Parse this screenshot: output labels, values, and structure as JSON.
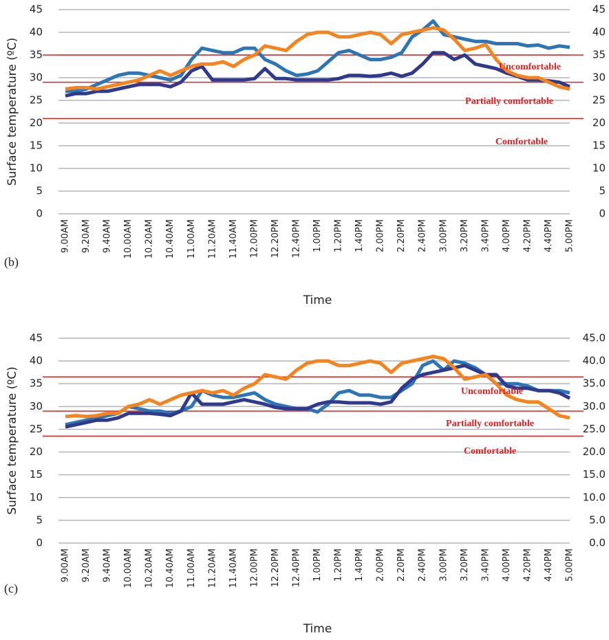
{
  "chart_data": [
    {
      "type": "line",
      "panel_label": "(b)",
      "xlabel": "Time",
      "ylabel": "Surface temperature (ºC)",
      "categories": [
        "9.00AM",
        null,
        "9.20AM",
        null,
        "9.40AM",
        null,
        "10.00AM",
        null,
        "10.20AM",
        null,
        "10.40AM",
        null,
        "11.00AM",
        null,
        "11.20AM",
        null,
        "11.40AM",
        null,
        "12.00PM",
        null,
        "12.20PM",
        null,
        "12.40PM",
        null,
        "1.00PM",
        null,
        "1.20PM",
        null,
        "1.40PM",
        null,
        "2.00PM",
        null,
        "2.20PM",
        null,
        "2.40PM",
        null,
        "3.00PM",
        null,
        "3.20PM",
        null,
        "3.40PM",
        null,
        "4.00PM",
        null,
        "4.20PM",
        null,
        "4.40PM",
        null,
        "5.00PM"
      ],
      "series": [
        {
          "color": "#2e75b6",
          "values": [
            27,
            27,
            27.5,
            28.5,
            29.5,
            30.5,
            31,
            31,
            30.5,
            30,
            29.5,
            30.5,
            34,
            36.5,
            36,
            35.5,
            35.5,
            36.5,
            36.5,
            34,
            33,
            31.5,
            30.5,
            30.8,
            31.5,
            33.5,
            35.5,
            36,
            35,
            34,
            34,
            34.5,
            35.5,
            39,
            40.5,
            42.5,
            39.5,
            39,
            38.5,
            38,
            38,
            37.5,
            37.5,
            37.5,
            37,
            37.2,
            36.5,
            37,
            36.7
          ]
        },
        {
          "color": "#2f3a8c",
          "values": [
            26,
            26.5,
            26.5,
            27,
            27,
            27.5,
            28,
            28.5,
            28.5,
            28.5,
            28,
            29,
            31.5,
            32.5,
            29.5,
            29.5,
            29.5,
            29.5,
            29.8,
            32,
            29.8,
            29.8,
            29.5,
            29.5,
            29.5,
            29.5,
            29.8,
            30.5,
            30.5,
            30.3,
            30.5,
            31,
            30.3,
            31,
            33,
            35.5,
            35.5,
            34,
            35,
            33,
            32.5,
            32,
            31,
            30.3,
            29.5,
            29.5,
            29.3,
            29,
            28
          ]
        },
        {
          "color": "#f5841f",
          "values": [
            27.5,
            27.8,
            27.8,
            27.5,
            28,
            28.5,
            29,
            29.5,
            30.5,
            31.5,
            30.5,
            31.5,
            32.5,
            33,
            33,
            33.5,
            32.5,
            34,
            35,
            37,
            36.5,
            36,
            38,
            39.5,
            40,
            40,
            39,
            39,
            39.5,
            40,
            39.5,
            37.5,
            39.5,
            40,
            40.5,
            41,
            40.5,
            38.5,
            36,
            36.5,
            37.3,
            34,
            31.5,
            30.5,
            30,
            30,
            29,
            28,
            27.5
          ]
        }
      ],
      "ylim": [
        0,
        45
      ],
      "yticks": [
        0,
        5,
        10,
        15,
        20,
        25,
        30,
        35,
        40,
        45
      ],
      "y2lim": [
        0,
        45
      ],
      "y2ticks": [
        0,
        5,
        10,
        15,
        20,
        25,
        30,
        35,
        40,
        45
      ],
      "grid": true,
      "threshold_color": "#e02020",
      "thresholds": [
        35,
        29,
        21
      ],
      "annotations": [
        "Uncomfortable",
        "Partially comfortable",
        "Comfortable"
      ]
    },
    {
      "type": "line",
      "panel_label": "(c)",
      "xlabel": "Time",
      "ylabel": "Surface temperature (ºC)",
      "categories": [
        "9.00AM",
        null,
        "9.20AM",
        null,
        "9.40AM",
        null,
        "10.00AM",
        null,
        "10.20AM",
        null,
        "10.40AM",
        null,
        "11.00AM",
        null,
        "11.20AM",
        null,
        "11.40AM",
        null,
        "12.00PM",
        null,
        "12.20PM",
        null,
        "12.40PM",
        null,
        "1.00PM",
        null,
        "1.20PM",
        null,
        "1.40PM",
        null,
        "2.00PM",
        null,
        "2.20PM",
        null,
        "2.40PM",
        null,
        "3.00PM",
        null,
        "3.20PM",
        null,
        "3.40PM",
        null,
        "4.00PM",
        null,
        "4.20PM",
        null,
        "4.40PM",
        null,
        "5.00PM"
      ],
      "series": [
        {
          "color": "#2e75b6",
          "values": [
            26,
            26.5,
            27,
            27.5,
            28,
            28.5,
            30,
            29.5,
            29,
            29,
            28.5,
            29,
            30,
            33.5,
            32.5,
            32,
            32,
            32.5,
            33,
            31.5,
            30.5,
            30,
            29.5,
            29.5,
            28.8,
            30.5,
            33,
            33.5,
            32.5,
            32.5,
            32,
            32,
            33.5,
            35,
            39,
            40,
            38,
            40,
            39.5,
            38.5,
            37,
            35,
            35,
            35,
            34.5,
            33.5,
            33.5,
            33.5,
            33
          ]
        },
        {
          "color": "#2f3a8c",
          "values": [
            25.5,
            26,
            26.5,
            27,
            27,
            27.5,
            28.5,
            28.5,
            28.5,
            28.3,
            28,
            29,
            33,
            30.5,
            30.5,
            30.5,
            31,
            31.5,
            31,
            30.5,
            29.8,
            29.5,
            29.5,
            29.5,
            30.5,
            31,
            31,
            30.8,
            30.8,
            30.8,
            30.5,
            31,
            34,
            36,
            37,
            37.5,
            38,
            38.5,
            39,
            38,
            37,
            37,
            34.5,
            34,
            34,
            33.5,
            33.5,
            33,
            31.8
          ]
        },
        {
          "color": "#f5841f",
          "values": [
            27.8,
            28,
            27.8,
            28,
            28.5,
            28.5,
            30,
            30.5,
            31.5,
            30.5,
            31.5,
            32.5,
            33,
            33.5,
            33,
            33.5,
            32.5,
            34,
            35,
            37,
            36.5,
            36,
            38,
            39.5,
            40,
            40,
            39,
            39,
            39.5,
            40,
            39.5,
            37.5,
            39.5,
            40,
            40.5,
            41,
            40.5,
            38.5,
            36,
            36.5,
            37,
            35,
            32.5,
            31.5,
            31,
            31,
            29.5,
            28,
            27.5
          ]
        }
      ],
      "ylim": [
        0,
        45
      ],
      "yticks": [
        0,
        5,
        10,
        15,
        20,
        25,
        30,
        35,
        40,
        45
      ],
      "y2lim": [
        0,
        45
      ],
      "y2ticks": [
        {
          "value": 0,
          "label": "0.0"
        },
        {
          "value": 5,
          "label": "5.0"
        },
        {
          "value": 10,
          "label": "10.0"
        },
        {
          "value": 15,
          "label": "15.0"
        },
        {
          "value": 20,
          "label": "20.0"
        },
        {
          "value": 25,
          "label": "25.0"
        },
        {
          "value": 30,
          "label": "30.0"
        },
        {
          "value": 35,
          "label": "35.0"
        },
        {
          "value": 40,
          "label": "40.0"
        },
        {
          "value": 45,
          "label": "45.0"
        }
      ],
      "grid": true,
      "threshold_color": "#e02020",
      "thresholds": [
        36.5,
        29,
        23.5
      ],
      "annotations": [
        "Uncomfortable",
        "Partially comfortable",
        "Comfortable"
      ]
    }
  ]
}
